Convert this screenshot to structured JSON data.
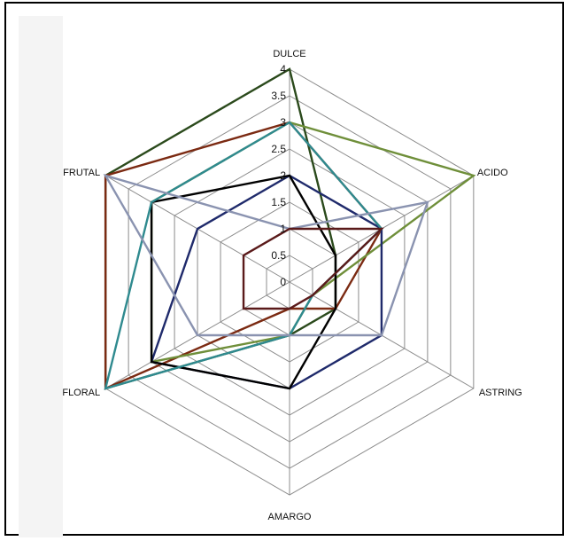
{
  "chart_data": {
    "type": "radar",
    "axes": [
      "DULCE",
      "ACIDO",
      "ASTRING",
      "AMARGO",
      "FLORAL",
      "FRUTAL"
    ],
    "rlim": [
      0,
      4
    ],
    "ticks": [
      "0",
      "0.5",
      "1",
      "1.5",
      "2",
      "2.5",
      "3",
      "3.5",
      "4"
    ],
    "grid": true,
    "legend": "none",
    "series": [
      {
        "color": "#2b4a1c",
        "values": [
          4,
          1,
          1,
          1,
          4,
          4
        ]
      },
      {
        "color": "#7b2a12",
        "values": [
          3,
          2,
          1,
          0.5,
          4,
          4
        ]
      },
      {
        "color": "#6f8f3a",
        "values": [
          3,
          4,
          0.5,
          1,
          3,
          3
        ]
      },
      {
        "color": "#1f2a6b",
        "values": [
          2,
          2,
          2,
          2,
          3,
          2
        ]
      },
      {
        "color": "#000000",
        "values": [
          2,
          1,
          1,
          2,
          3,
          3
        ]
      },
      {
        "color": "#2f8a8f",
        "values": [
          3,
          2,
          0.5,
          1,
          4,
          3
        ]
      },
      {
        "color": "#8a93b0",
        "values": [
          1,
          3,
          2,
          1,
          2,
          4
        ]
      },
      {
        "color": "#5a1a1a",
        "values": [
          1,
          2,
          0.5,
          0.5,
          1,
          1
        ]
      }
    ]
  }
}
